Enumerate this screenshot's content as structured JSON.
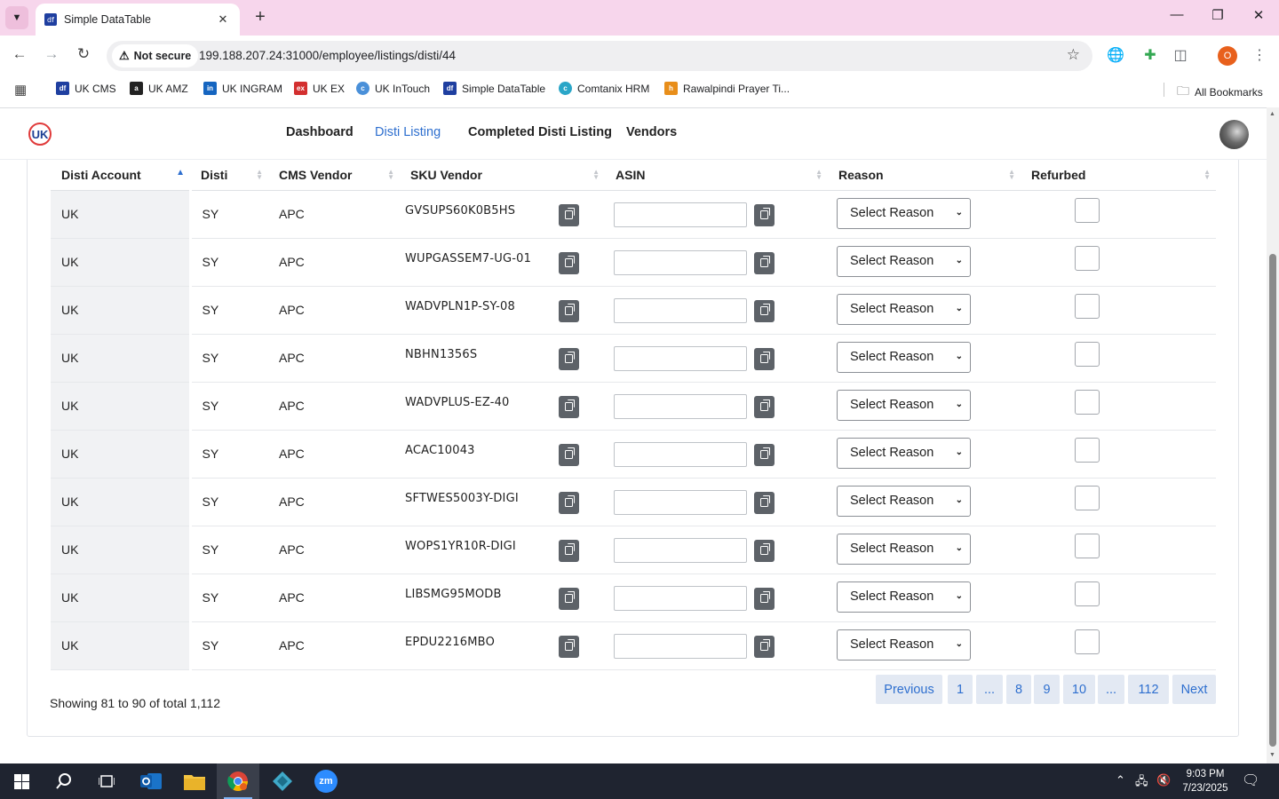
{
  "browser": {
    "tab_title": "Simple DataTable",
    "tab_favicon": "df",
    "new_tab_symbol": "+",
    "security_label": "Not secure",
    "url": "199.188.207.24:31000/employee/listings/disti/44",
    "profile_initial": "O",
    "bookmarks": [
      {
        "label": "UK CMS",
        "icon": "df",
        "color": "#1f3fa0"
      },
      {
        "label": "UK AMZ",
        "icon": "a",
        "color": "#222222"
      },
      {
        "label": "UK INGRAM",
        "icon": "in",
        "color": "#1565c0"
      },
      {
        "label": "UK EX",
        "icon": "ex",
        "color": "#d32f2f"
      },
      {
        "label": "UK InTouch",
        "icon": "c",
        "color": "#4a90d9"
      },
      {
        "label": "Simple DataTable",
        "icon": "df",
        "color": "#1f3fa0"
      },
      {
        "label": "Comtanix HRM",
        "icon": "c",
        "color": "#2aa6c8"
      },
      {
        "label": "Rawalpindi Prayer Ti...",
        "icon": "h",
        "color": "#e88e1a"
      }
    ],
    "all_bookmarks_label": "All Bookmarks"
  },
  "app": {
    "logo_text": "UK",
    "nav": [
      {
        "label": "Dashboard",
        "active": false
      },
      {
        "label": "Disti Listing",
        "active": true
      },
      {
        "label": "Completed Disti Listing",
        "active": false
      },
      {
        "label": "Vendors",
        "active": false
      }
    ]
  },
  "table": {
    "columns": [
      "Disti Account",
      "Disti",
      "CMS Vendor",
      "SKU Vendor",
      "ASIN",
      "Reason",
      "Refurbed"
    ],
    "sorted_column": "Disti Account",
    "sort_direction": "ascending",
    "reason_placeholder": "Select Reason",
    "rows": [
      {
        "account": "UK",
        "disti": "SY",
        "vendor": "APC",
        "sku": "GVSUPS60K0B5HS",
        "asin": "",
        "reason": "Select Reason",
        "refurbed": false
      },
      {
        "account": "UK",
        "disti": "SY",
        "vendor": "APC",
        "sku": "WUPGASSEM7-UG-01",
        "asin": "",
        "reason": "Select Reason",
        "refurbed": false
      },
      {
        "account": "UK",
        "disti": "SY",
        "vendor": "APC",
        "sku": "WADVPLN1P-SY-08",
        "asin": "",
        "reason": "Select Reason",
        "refurbed": false
      },
      {
        "account": "UK",
        "disti": "SY",
        "vendor": "APC",
        "sku": "NBHN1356S",
        "asin": "",
        "reason": "Select Reason",
        "refurbed": false
      },
      {
        "account": "UK",
        "disti": "SY",
        "vendor": "APC",
        "sku": "WADVPLUS-EZ-40",
        "asin": "",
        "reason": "Select Reason",
        "refurbed": false
      },
      {
        "account": "UK",
        "disti": "SY",
        "vendor": "APC",
        "sku": "ACAC10043",
        "asin": "",
        "reason": "Select Reason",
        "refurbed": false
      },
      {
        "account": "UK",
        "disti": "SY",
        "vendor": "APC",
        "sku": "SFTWES5003Y-DIGI",
        "asin": "",
        "reason": "Select Reason",
        "refurbed": false
      },
      {
        "account": "UK",
        "disti": "SY",
        "vendor": "APC",
        "sku": "WOPS1YR10R-DIGI",
        "asin": "",
        "reason": "Select Reason",
        "refurbed": false
      },
      {
        "account": "UK",
        "disti": "SY",
        "vendor": "APC",
        "sku": "LIBSMG95MODB",
        "asin": "",
        "reason": "Select Reason",
        "refurbed": false
      },
      {
        "account": "UK",
        "disti": "SY",
        "vendor": "APC",
        "sku": "EPDU2216MBO",
        "asin": "",
        "reason": "Select Reason",
        "refurbed": false
      }
    ]
  },
  "pagination": {
    "summary": "Showing 81 to 90 of total 1,112",
    "previous": "Previous",
    "pages": [
      "1",
      "...",
      "8",
      "9",
      "10",
      "...",
      "112"
    ],
    "current_page": "9",
    "next": "Next"
  },
  "taskbar": {
    "time": "9:03 PM",
    "date": "7/23/2025",
    "apps": [
      "start-icon",
      "search-icon",
      "task-view-icon",
      "outlook-icon",
      "file-explorer-icon",
      "chrome-icon",
      "app-icon",
      "zoom-icon"
    ],
    "zoom_label": "zm"
  }
}
